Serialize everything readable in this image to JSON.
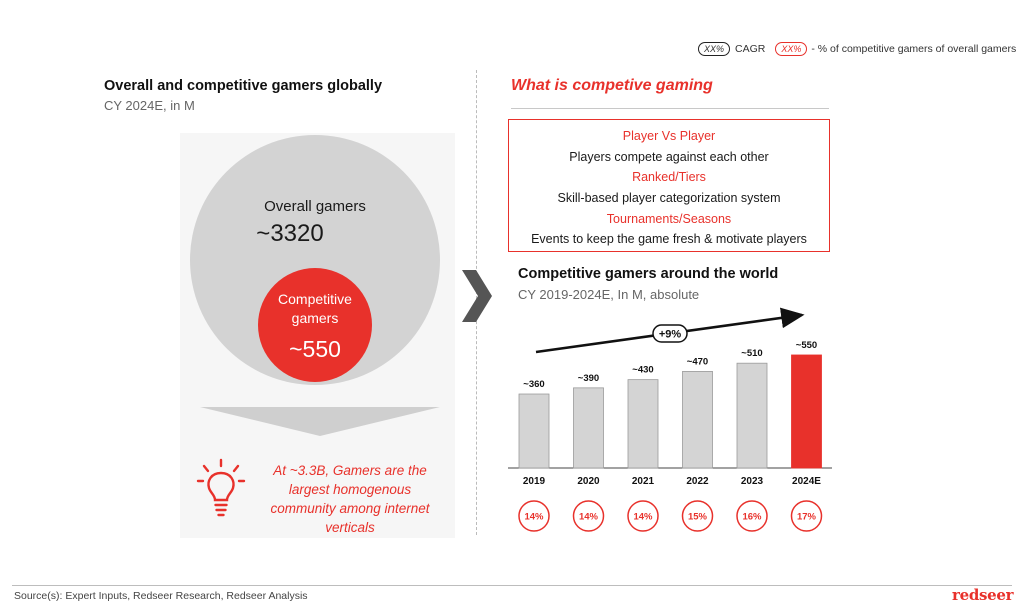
{
  "legend": {
    "cagr_pill": "XX%",
    "cagr_text": "CAGR",
    "pct_pill": "XX%",
    "pct_text": "- % of competitive gamers of overall gamers"
  },
  "left": {
    "title": "Overall and competitive gamers globally",
    "subtitle": "CY 2024E, in M",
    "overall_label": "Overall gamers",
    "overall_value": "~3320",
    "competitive_label_line1": "Competitive",
    "competitive_label_line2": "gamers",
    "competitive_value": "~550",
    "note_line1": "At ~3.3B, Gamers are the",
    "note_line2": "largest homogenous",
    "note_line3": "community among internet",
    "note_line4": "verticals"
  },
  "right": {
    "title": "What is competive gaming",
    "definitions": [
      {
        "heading": "Player Vs Player",
        "text": "Players compete against each other"
      },
      {
        "heading": "Ranked/Tiers",
        "text": "Skill-based player categorization system"
      },
      {
        "heading": "Tournaments/Seasons",
        "text": "Events to keep the game fresh & motivate players"
      }
    ]
  },
  "chart_data": {
    "type": "bar",
    "title": "Competitive gamers around the world",
    "subtitle": "CY 2019-2024E, In M, absolute",
    "categories": [
      "2019",
      "2020",
      "2021",
      "2022",
      "2023",
      "2024E"
    ],
    "values": [
      360,
      390,
      430,
      470,
      510,
      550
    ],
    "value_labels": [
      "~360",
      "~390",
      "~430",
      "~470",
      "~510",
      "~550"
    ],
    "share_labels": [
      "14%",
      "14%",
      "14%",
      "15%",
      "16%",
      "17%"
    ],
    "cagr_label": "+9%",
    "highlight_index": 5,
    "colors": {
      "bar": "#d4d4d4",
      "highlight": "#e8312b"
    }
  },
  "colors": {
    "accent": "#e8312b",
    "grey_circle": "#d3d3d3"
  },
  "footer": {
    "source": "Source(s): Expert Inputs, Redseer Research, Redseer Analysis",
    "brand": "redseer"
  }
}
